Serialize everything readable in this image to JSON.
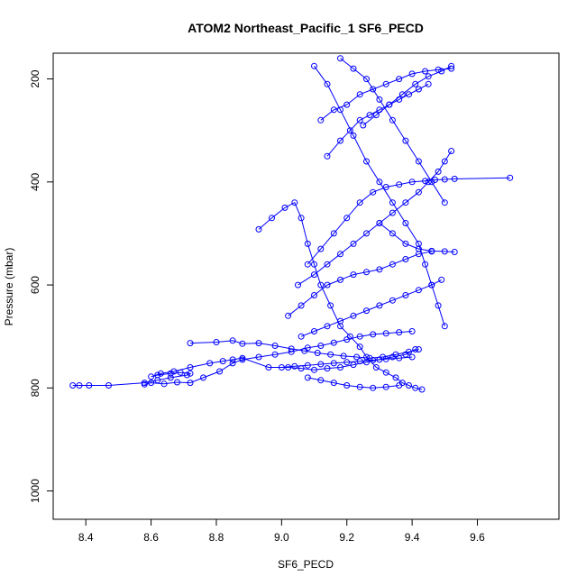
{
  "chart_data": {
    "type": "line",
    "title": "ATOM2 Northeast_Pacific_1 SF6_PECD",
    "xlabel": "SF6_PECD",
    "ylabel": "Pressure (mbar)",
    "xlim": [
      8.3,
      9.85
    ],
    "ylim": [
      1055,
      150
    ],
    "y_inverted": true,
    "x_ticks": [
      8.4,
      8.6,
      8.8,
      9.0,
      9.2,
      9.4,
      9.6
    ],
    "x_tick_labels": [
      "8.4",
      "8.6",
      "8.8",
      "9.0",
      "9.2",
      "9.4",
      "9.6"
    ],
    "y_ticks": [
      200,
      400,
      600,
      800,
      1000
    ],
    "y_tick_labels": [
      "200",
      "400",
      "600",
      "800",
      "1000"
    ],
    "grid": false,
    "series_color": "#0000ff",
    "marker": "open-circle",
    "series": [
      {
        "values_desc": "profile traces",
        "x": [
          8.36,
          8.38,
          8.41,
          8.47,
          8.58,
          8.62,
          8.66,
          8.71,
          8.72,
          8.69,
          8.66,
          8.62,
          8.6,
          8.63,
          8.67,
          8.72,
          8.78,
          8.82,
          8.85,
          8.88,
          8.96,
          9.02,
          9.06,
          9.1,
          9.14,
          9.18,
          9.22,
          9.26,
          9.3,
          9.34,
          9.38,
          9.41
        ],
        "y": [
          795,
          795,
          795,
          795,
          790,
          785,
          780,
          775,
          772,
          770,
          772,
          775,
          778,
          772,
          768,
          760,
          752,
          748,
          745,
          742,
          760,
          760,
          762,
          765,
          762,
          760,
          755,
          750,
          745,
          740,
          735,
          725
        ]
      },
      {
        "x": [
          8.58,
          8.6,
          8.64,
          8.68,
          8.72,
          8.76,
          8.81,
          8.85,
          8.88,
          8.93,
          8.98,
          9.03,
          9.08,
          9.12,
          9.16,
          9.2,
          9.24,
          9.28,
          9.32,
          9.36,
          9.4
        ],
        "y": [
          793,
          790,
          792,
          789,
          790,
          780,
          768,
          752,
          745,
          740,
          735,
          730,
          722,
          718,
          712,
          706,
          700,
          696,
          694,
          692,
          690
        ]
      },
      {
        "x": [
          8.72,
          8.8,
          8.85,
          8.88,
          8.93,
          8.98,
          9.03,
          9.07,
          9.11,
          9.15,
          9.19,
          9.23,
          9.27,
          9.31,
          9.35,
          9.39,
          9.42
        ],
        "y": [
          713,
          711,
          708,
          714,
          713,
          718,
          724,
          728,
          732,
          735,
          738,
          740,
          742,
          740,
          735,
          730,
          725
        ]
      },
      {
        "x": [
          8.93,
          8.97,
          9.01,
          9.04,
          9.06,
          9.08,
          9.1,
          9.12,
          9.15,
          9.18,
          9.21,
          9.24,
          9.26,
          9.29,
          9.32,
          9.35,
          9.37,
          9.39,
          9.41,
          9.43
        ],
        "y": [
          492,
          470,
          450,
          440,
          470,
          520,
          560,
          600,
          640,
          680,
          700,
          720,
          740,
          760,
          770,
          780,
          790,
          795,
          800,
          803
        ]
      },
      {
        "x": [
          9.05,
          9.1,
          9.14,
          9.18,
          9.22,
          9.26,
          9.3,
          9.34,
          9.38,
          9.42,
          9.45,
          9.48,
          9.5,
          9.52
        ],
        "y": [
          600,
          580,
          560,
          540,
          520,
          500,
          480,
          460,
          440,
          420,
          400,
          380,
          360,
          340
        ]
      },
      {
        "x": [
          9.08,
          9.12,
          9.16,
          9.2,
          9.24,
          9.28,
          9.32,
          9.36,
          9.4,
          9.44,
          9.47,
          9.5,
          9.53,
          9.7
        ],
        "y": [
          560,
          530,
          500,
          470,
          440,
          420,
          410,
          405,
          400,
          398,
          396,
          395,
          394,
          392
        ]
      },
      {
        "x": [
          9.1,
          9.14,
          9.18,
          9.22,
          9.26,
          9.3,
          9.34,
          9.38,
          9.42,
          9.44,
          9.46,
          9.48,
          9.5
        ],
        "y": [
          175,
          210,
          260,
          310,
          360,
          400,
          440,
          480,
          520,
          560,
          600,
          640,
          680
        ]
      },
      {
        "x": [
          9.12,
          9.16,
          9.2,
          9.24,
          9.28,
          9.32,
          9.36,
          9.4,
          9.44,
          9.48,
          9.52
        ],
        "y": [
          280,
          260,
          250,
          230,
          220,
          210,
          200,
          190,
          185,
          182,
          180
        ]
      },
      {
        "x": [
          9.14,
          9.18,
          9.21,
          9.24,
          9.27,
          9.3,
          9.33,
          9.36,
          9.39,
          9.42,
          9.45
        ],
        "y": [
          350,
          320,
          300,
          280,
          270,
          260,
          250,
          240,
          230,
          220,
          210
        ]
      },
      {
        "x": [
          9.02,
          9.06,
          9.1,
          9.14,
          9.18,
          9.22,
          9.26,
          9.3,
          9.34,
          9.38,
          9.42,
          9.46
        ],
        "y": [
          660,
          640,
          620,
          600,
          590,
          580,
          575,
          570,
          560,
          550,
          540,
          535
        ]
      },
      {
        "x": [
          9.06,
          9.1,
          9.14,
          9.18,
          9.22,
          9.26,
          9.3,
          9.34,
          9.38,
          9.42,
          9.46,
          9.49
        ],
        "y": [
          700,
          690,
          680,
          670,
          660,
          650,
          640,
          630,
          620,
          610,
          600,
          590
        ]
      },
      {
        "x": [
          9.0,
          9.04,
          9.08,
          9.12,
          9.16,
          9.2,
          9.24,
          9.28,
          9.32,
          9.36,
          9.4
        ],
        "y": [
          760,
          758,
          756,
          754,
          752,
          750,
          748,
          746,
          744,
          742,
          740
        ]
      },
      {
        "x": [
          9.08,
          9.12,
          9.16,
          9.2,
          9.24,
          9.28,
          9.32,
          9.36
        ],
        "y": [
          780,
          785,
          790,
          795,
          798,
          800,
          798,
          795
        ]
      },
      {
        "x": [
          9.18,
          9.22,
          9.26,
          9.3,
          9.34,
          9.38,
          9.42,
          9.46,
          9.5
        ],
        "y": [
          160,
          180,
          200,
          240,
          280,
          320,
          360,
          400,
          440
        ]
      },
      {
        "x": [
          9.25,
          9.29,
          9.33,
          9.37,
          9.41,
          9.45,
          9.49,
          9.52
        ],
        "y": [
          290,
          270,
          250,
          230,
          210,
          195,
          185,
          175
        ]
      },
      {
        "x": [
          9.3,
          9.34,
          9.38,
          9.42,
          9.46,
          9.5,
          9.53
        ],
        "y": [
          480,
          500,
          520,
          530,
          534,
          535,
          536
        ]
      }
    ]
  }
}
